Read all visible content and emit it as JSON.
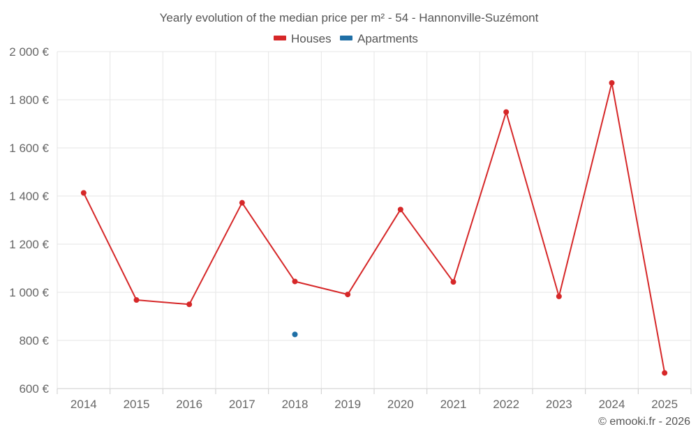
{
  "chart_data": {
    "type": "line",
    "title": "Yearly evolution of the median price per m² - 54 - Hannonville-Suzémont",
    "categories": [
      "2014",
      "2015",
      "2016",
      "2017",
      "2018",
      "2019",
      "2020",
      "2021",
      "2022",
      "2023",
      "2024",
      "2025"
    ],
    "y_tick_labels": [
      "600 €",
      "800 €",
      "1 000 €",
      "1 200 €",
      "1 400 €",
      "1 600 €",
      "1 800 €",
      "2 000 €"
    ],
    "y_ticks": [
      600,
      800,
      1000,
      1200,
      1400,
      1600,
      1800,
      2000
    ],
    "ylim": [
      600,
      2000
    ],
    "grid": true,
    "legend_position": "top-center",
    "series": [
      {
        "name": "Houses",
        "color": "#d62728",
        "values": [
          1413,
          968,
          950,
          1372,
          1045,
          991,
          1344,
          1043,
          1749,
          983,
          1870,
          665
        ]
      },
      {
        "name": "Apartments",
        "color": "#1f6fa6",
        "values": [
          null,
          null,
          null,
          null,
          825,
          null,
          null,
          null,
          null,
          null,
          null,
          null
        ]
      }
    ],
    "credit": "© emooki.fr - 2026"
  }
}
